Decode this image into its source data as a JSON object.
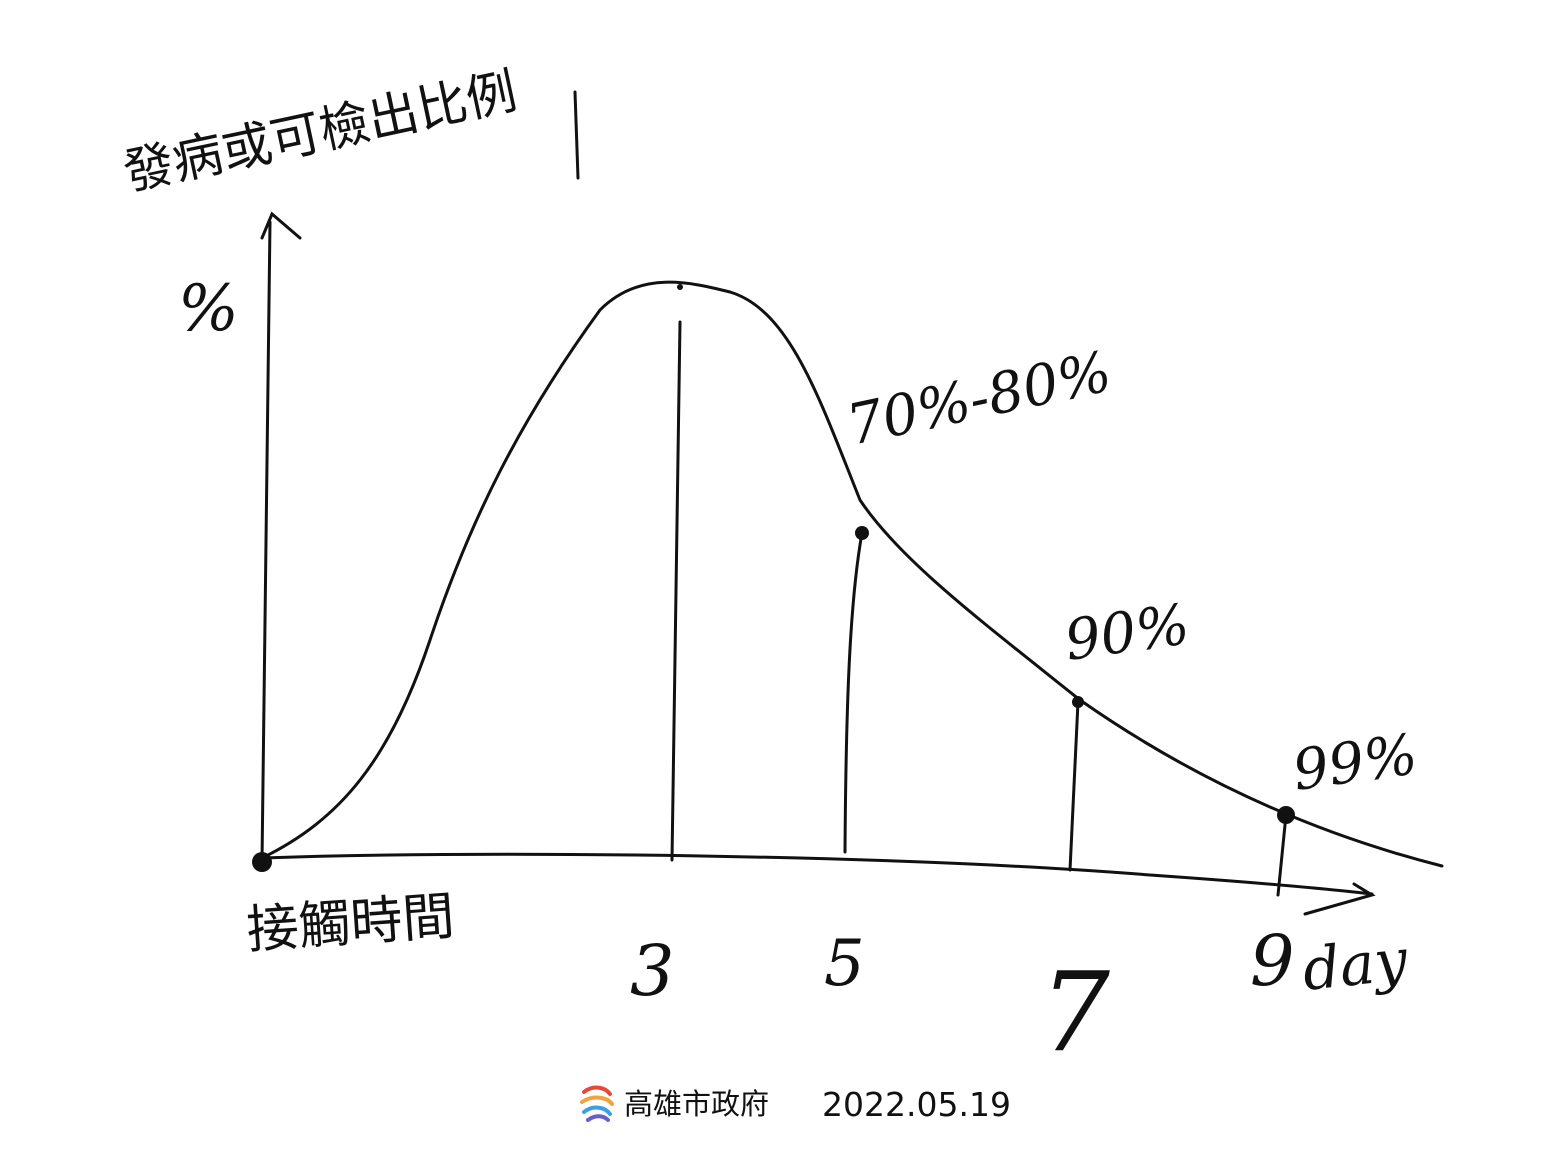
{
  "diagram": {
    "y_axis_label": "發病或可檢出比例",
    "y_axis_unit": "%",
    "x_axis_label": "接觸時間",
    "x_ticks": [
      "3",
      "5",
      "7",
      "9"
    ],
    "x_unit": "day",
    "annotations": [
      {
        "day": 5,
        "text": "70%-80%"
      },
      {
        "day": 7,
        "text": "90%"
      },
      {
        "day": 9,
        "text": "99%"
      }
    ]
  },
  "footer": {
    "logo_text": "高雄市政府",
    "date": "2022.05.19"
  }
}
